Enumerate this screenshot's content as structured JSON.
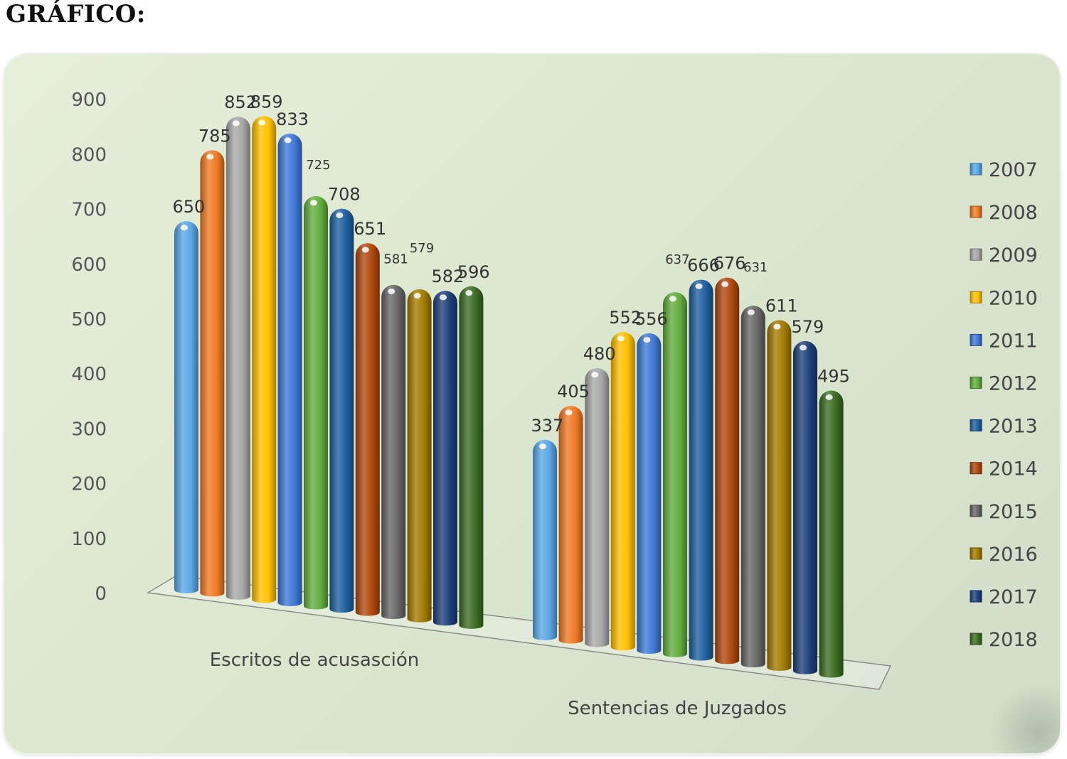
{
  "heading": "GRÁFICO:",
  "chart_data": {
    "type": "bar",
    "title": "",
    "xlabel": "",
    "ylabel": "",
    "ylim": [
      0,
      900
    ],
    "yticks": [
      0,
      100,
      200,
      300,
      400,
      500,
      600,
      700,
      800,
      900
    ],
    "categories": [
      "Escritos  de acusasción",
      "Sentencias de Juzgados"
    ],
    "legend_position": "right",
    "series": [
      {
        "name": "2007",
        "color": "#5aa7e6",
        "values": [
          650,
          337
        ]
      },
      {
        "name": "2008",
        "color": "#f07a25",
        "values": [
          785,
          405
        ]
      },
      {
        "name": "2009",
        "color": "#a8a8a8",
        "values": [
          852,
          480
        ]
      },
      {
        "name": "2010",
        "color": "#ffc000",
        "values": [
          859,
          552
        ]
      },
      {
        "name": "2011",
        "color": "#3f78d6",
        "values": [
          833,
          556
        ]
      },
      {
        "name": "2012",
        "color": "#62ad3c",
        "values": [
          725,
          637
        ]
      },
      {
        "name": "2013",
        "color": "#1f5f9e",
        "values": [
          708,
          666
        ]
      },
      {
        "name": "2014",
        "color": "#b0470e",
        "values": [
          651,
          676
        ]
      },
      {
        "name": "2015",
        "color": "#666666",
        "values": [
          581,
          631
        ]
      },
      {
        "name": "2016",
        "color": "#a37b00",
        "values": [
          579,
          611
        ]
      },
      {
        "name": "2017",
        "color": "#1e3f7a",
        "values": [
          582,
          579
        ]
      },
      {
        "name": "2018",
        "color": "#3c6c22",
        "values": [
          596,
          495
        ]
      }
    ]
  }
}
